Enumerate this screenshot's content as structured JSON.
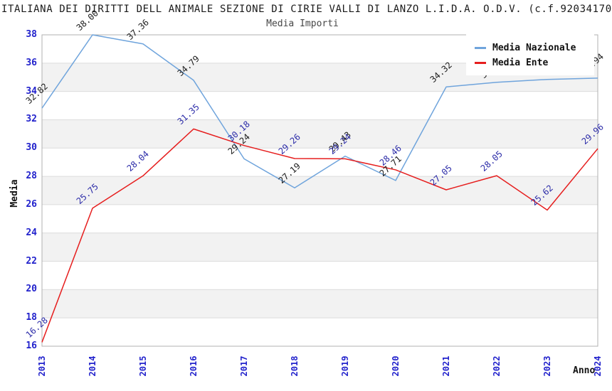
{
  "title": "ITALIANA DEI DIRITTI DELL ANIMALE SEZIONE DI CIRIE VALLI DI LANZO L.I.D.A. O.D.V. (c.f.92034170",
  "subtitle": "Media Importi",
  "axes": {
    "y_label": "Media",
    "x_label": "Anno",
    "y_ticks": [
      38,
      36,
      34,
      32,
      30,
      28,
      26,
      24,
      22,
      20,
      18,
      16
    ],
    "tick_color": "#2222cc"
  },
  "legend": [
    {
      "label": "Media Nazionale",
      "color": "#6fa4dc"
    },
    {
      "label": "Media Ente",
      "color": "#e61e1e"
    }
  ],
  "chart_data": {
    "type": "line",
    "title": "Media Importi",
    "xlabel": "Anno",
    "ylabel": "Media",
    "ylim": [
      16,
      38
    ],
    "grid": "horizontal gridlines every 2 units with alternating grey bands",
    "legend_position": "top-right, white box overlapping plot",
    "x": [
      "2013",
      "2014",
      "2015",
      "2016",
      "2017",
      "2018",
      "2019",
      "2020",
      "2021",
      "2022",
      "2023",
      "2024"
    ],
    "series": [
      {
        "name": "Media Nazionale",
        "color": "#6fa4dc",
        "label_color": "#1a1a1a",
        "values": [
          32.82,
          38.0,
          37.36,
          34.79,
          29.24,
          27.19,
          29.43,
          27.71,
          34.32,
          34.65,
          34.85,
          34.94
        ],
        "note_hidden_labels": "2022 and 2023 value labels are mostly covered by the legend box"
      },
      {
        "name": "Media Ente",
        "color": "#e61e1e",
        "label_color": "#2b2ba8",
        "values": [
          16.28,
          25.75,
          28.04,
          31.35,
          30.18,
          29.26,
          29.24,
          28.46,
          27.05,
          28.05,
          25.62,
          29.96
        ]
      }
    ],
    "band_color": "#f2f2f2"
  }
}
